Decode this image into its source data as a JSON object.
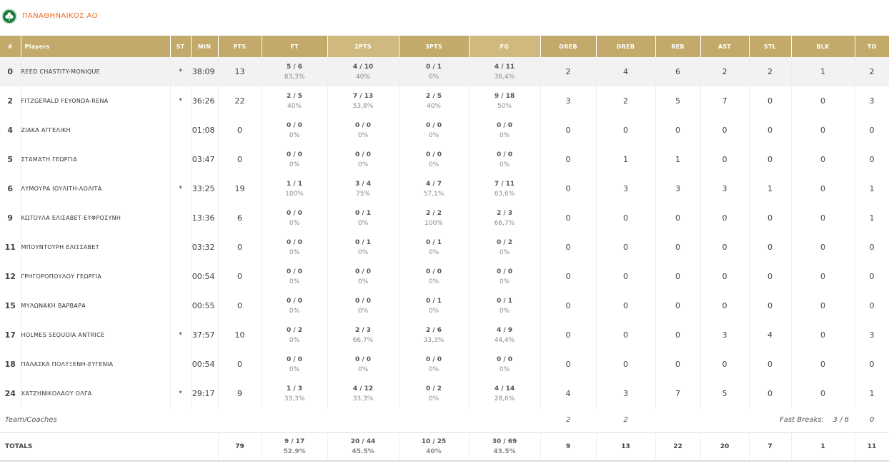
{
  "team": {
    "name": "ΠΑΝΑΘΗΝΑΙΚΟΣ ΑΟ",
    "logo_icon": "shamrock-club-logo-icon",
    "accent_color": "#e96d1f",
    "header_color": "#c3aa6a"
  },
  "columns": {
    "num": "#",
    "player": "Players",
    "st": "ST",
    "min": "MIN",
    "pts": "PTS",
    "ft": "FT",
    "two": "2PTS",
    "three": "3PTS",
    "fg": "FG",
    "oreb": "OREB",
    "dreb": "DREB",
    "reb": "REB",
    "ast": "AST",
    "stl": "STL",
    "blk": "BLK",
    "to": "TO"
  },
  "players": [
    {
      "num": "0",
      "name": "REED CHASTITY-MONIQUE",
      "st": "*",
      "min": "38:09",
      "pts": "13",
      "ft": "5 / 6",
      "ft_pct": "83,3%",
      "two": "4 / 10",
      "two_pct": "40%",
      "three": "0 / 1",
      "three_pct": "0%",
      "fg": "4 / 11",
      "fg_pct": "36,4%",
      "oreb": "2",
      "dreb": "4",
      "reb": "6",
      "ast": "2",
      "stl": "2",
      "blk": "1",
      "to": "2"
    },
    {
      "num": "2",
      "name": "FITZGERALD FEYONDA-RENA",
      "st": "*",
      "min": "36:26",
      "pts": "22",
      "ft": "2 / 5",
      "ft_pct": "40%",
      "two": "7 / 13",
      "two_pct": "53,8%",
      "three": "2 / 5",
      "three_pct": "40%",
      "fg": "9 / 18",
      "fg_pct": "50%",
      "oreb": "3",
      "dreb": "2",
      "reb": "5",
      "ast": "7",
      "stl": "0",
      "blk": "0",
      "to": "3"
    },
    {
      "num": "4",
      "name": "ΖΙΑΚΑ ΑΓΓΕΛΙΚΗ",
      "st": "",
      "min": "01:08",
      "pts": "0",
      "ft": "0 / 0",
      "ft_pct": "0%",
      "two": "0 / 0",
      "two_pct": "0%",
      "three": "0 / 0",
      "three_pct": "0%",
      "fg": "0 / 0",
      "fg_pct": "0%",
      "oreb": "0",
      "dreb": "0",
      "reb": "0",
      "ast": "0",
      "stl": "0",
      "blk": "0",
      "to": "0"
    },
    {
      "num": "5",
      "name": "ΣΤΑΜΑΤΗ ΓΕΩΡΓΙΑ",
      "st": "",
      "min": "03:47",
      "pts": "0",
      "ft": "0 / 0",
      "ft_pct": "0%",
      "two": "0 / 0",
      "two_pct": "0%",
      "three": "0 / 0",
      "three_pct": "0%",
      "fg": "0 / 0",
      "fg_pct": "0%",
      "oreb": "0",
      "dreb": "1",
      "reb": "1",
      "ast": "0",
      "stl": "0",
      "blk": "0",
      "to": "0"
    },
    {
      "num": "6",
      "name": "ΛΥΜΟΥΡΑ ΙΟΥΛΙΤΗ-ΛΟΛΙΤΑ",
      "st": "*",
      "min": "33:25",
      "pts": "19",
      "ft": "1 / 1",
      "ft_pct": "100%",
      "two": "3 / 4",
      "two_pct": "75%",
      "three": "4 / 7",
      "three_pct": "57,1%",
      "fg": "7 / 11",
      "fg_pct": "63,6%",
      "oreb": "0",
      "dreb": "3",
      "reb": "3",
      "ast": "3",
      "stl": "1",
      "blk": "0",
      "to": "1"
    },
    {
      "num": "9",
      "name": "ΚΩΤΟΥΛΑ ΕΛΙΣΑΒΕΤ-ΕΥΦΡΟΣΥΝΗ",
      "st": "",
      "min": "13:36",
      "pts": "6",
      "ft": "0 / 0",
      "ft_pct": "0%",
      "two": "0 / 1",
      "two_pct": "0%",
      "three": "2 / 2",
      "three_pct": "100%",
      "fg": "2 / 3",
      "fg_pct": "66,7%",
      "oreb": "0",
      "dreb": "0",
      "reb": "0",
      "ast": "0",
      "stl": "0",
      "blk": "0",
      "to": "1"
    },
    {
      "num": "11",
      "name": "ΜΠΟΥΝΤΟΥΡΗ ΕΛΙΣΣΑΒΕΤ",
      "st": "",
      "min": "03:32",
      "pts": "0",
      "ft": "0 / 0",
      "ft_pct": "0%",
      "two": "0 / 1",
      "two_pct": "0%",
      "three": "0 / 1",
      "three_pct": "0%",
      "fg": "0 / 2",
      "fg_pct": "0%",
      "oreb": "0",
      "dreb": "0",
      "reb": "0",
      "ast": "0",
      "stl": "0",
      "blk": "0",
      "to": "0"
    },
    {
      "num": "12",
      "name": "ΓΡΗΓΟΡΟΠΟΥΛΟΥ ΓΕΩΡΓΙΑ",
      "st": "",
      "min": "00:54",
      "pts": "0",
      "ft": "0 / 0",
      "ft_pct": "0%",
      "two": "0 / 0",
      "two_pct": "0%",
      "three": "0 / 0",
      "three_pct": "0%",
      "fg": "0 / 0",
      "fg_pct": "0%",
      "oreb": "0",
      "dreb": "0",
      "reb": "0",
      "ast": "0",
      "stl": "0",
      "blk": "0",
      "to": "0"
    },
    {
      "num": "15",
      "name": "ΜΥΛΩΝΑΚΗ ΒΑΡΒΑΡΑ",
      "st": "",
      "min": "00:55",
      "pts": "0",
      "ft": "0 / 0",
      "ft_pct": "0%",
      "two": "0 / 0",
      "two_pct": "0%",
      "three": "0 / 1",
      "three_pct": "0%",
      "fg": "0 / 1",
      "fg_pct": "0%",
      "oreb": "0",
      "dreb": "0",
      "reb": "0",
      "ast": "0",
      "stl": "0",
      "blk": "0",
      "to": "0"
    },
    {
      "num": "17",
      "name": "HOLMES SEQUOIA ANTRICE",
      "st": "*",
      "min": "37:57",
      "pts": "10",
      "ft": "0 / 2",
      "ft_pct": "0%",
      "two": "2 / 3",
      "two_pct": "66,7%",
      "three": "2 / 6",
      "three_pct": "33,3%",
      "fg": "4 / 9",
      "fg_pct": "44,4%",
      "oreb": "0",
      "dreb": "0",
      "reb": "0",
      "ast": "3",
      "stl": "4",
      "blk": "0",
      "to": "3"
    },
    {
      "num": "18",
      "name": "ΠΑΛΑΣΚΑ ΠΟΛΥΞΕΝΗ-ΕΥΓΕΝΙΑ",
      "st": "",
      "min": "00:54",
      "pts": "0",
      "ft": "0 / 0",
      "ft_pct": "0%",
      "two": "0 / 0",
      "two_pct": "0%",
      "three": "0 / 0",
      "three_pct": "0%",
      "fg": "0 / 0",
      "fg_pct": "0%",
      "oreb": "0",
      "dreb": "0",
      "reb": "0",
      "ast": "0",
      "stl": "0",
      "blk": "0",
      "to": "0"
    },
    {
      "num": "24",
      "name": "ΧΑΤΖΗΝΙΚΟΛΑΟΥ ΟΛΓΑ",
      "st": "*",
      "min": "29:17",
      "pts": "9",
      "ft": "1 / 3",
      "ft_pct": "33,3%",
      "two": "4 / 12",
      "two_pct": "33,3%",
      "three": "0 / 2",
      "three_pct": "0%",
      "fg": "4 / 14",
      "fg_pct": "28,6%",
      "oreb": "4",
      "dreb": "3",
      "reb": "7",
      "ast": "5",
      "stl": "0",
      "blk": "0",
      "to": "1"
    }
  ],
  "team_coaches": {
    "label": "Team/Coaches",
    "oreb": "2",
    "dreb": "2",
    "fast_breaks_label": "Fast Breaks:",
    "fast_breaks_value": "3 / 6",
    "to": "0"
  },
  "totals": {
    "label": "TOTALS",
    "pts": "79",
    "ft": "9 / 17",
    "ft_pct": "52.9%",
    "two": "20 / 44",
    "two_pct": "45.5%",
    "three": "10 / 25",
    "three_pct": "40%",
    "fg": "30 / 69",
    "fg_pct": "43.5%",
    "oreb": "9",
    "dreb": "13",
    "reb": "22",
    "ast": "20",
    "stl": "7",
    "blk": "1",
    "to": "11"
  }
}
